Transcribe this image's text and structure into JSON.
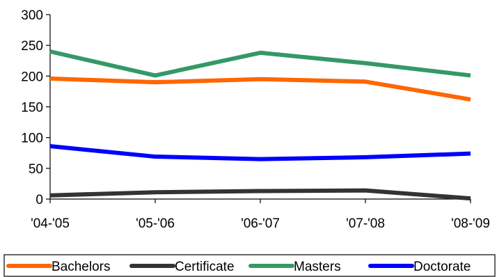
{
  "chart_data": {
    "type": "line",
    "categories": [
      "'04-'05",
      "'05-'06",
      "'06-'07",
      "'07-'08",
      "'08-'09"
    ],
    "series": [
      {
        "name": "Bachelors",
        "values": [
          196,
          190,
          195,
          191,
          162
        ],
        "color": "#ff6600"
      },
      {
        "name": "Certificate",
        "values": [
          6,
          11,
          13,
          14,
          1
        ],
        "color": "#333333"
      },
      {
        "name": "Masters",
        "values": [
          240,
          201,
          238,
          221,
          201
        ],
        "color": "#339966"
      },
      {
        "name": "Doctorate",
        "values": [
          86,
          69,
          65,
          68,
          74
        ],
        "color": "#0000ff"
      }
    ],
    "ylim": [
      0,
      300
    ],
    "yticks": [
      "0",
      "50",
      "100",
      "150",
      "200",
      "250",
      "300"
    ],
    "grid": false,
    "legend_position": "bottom"
  }
}
